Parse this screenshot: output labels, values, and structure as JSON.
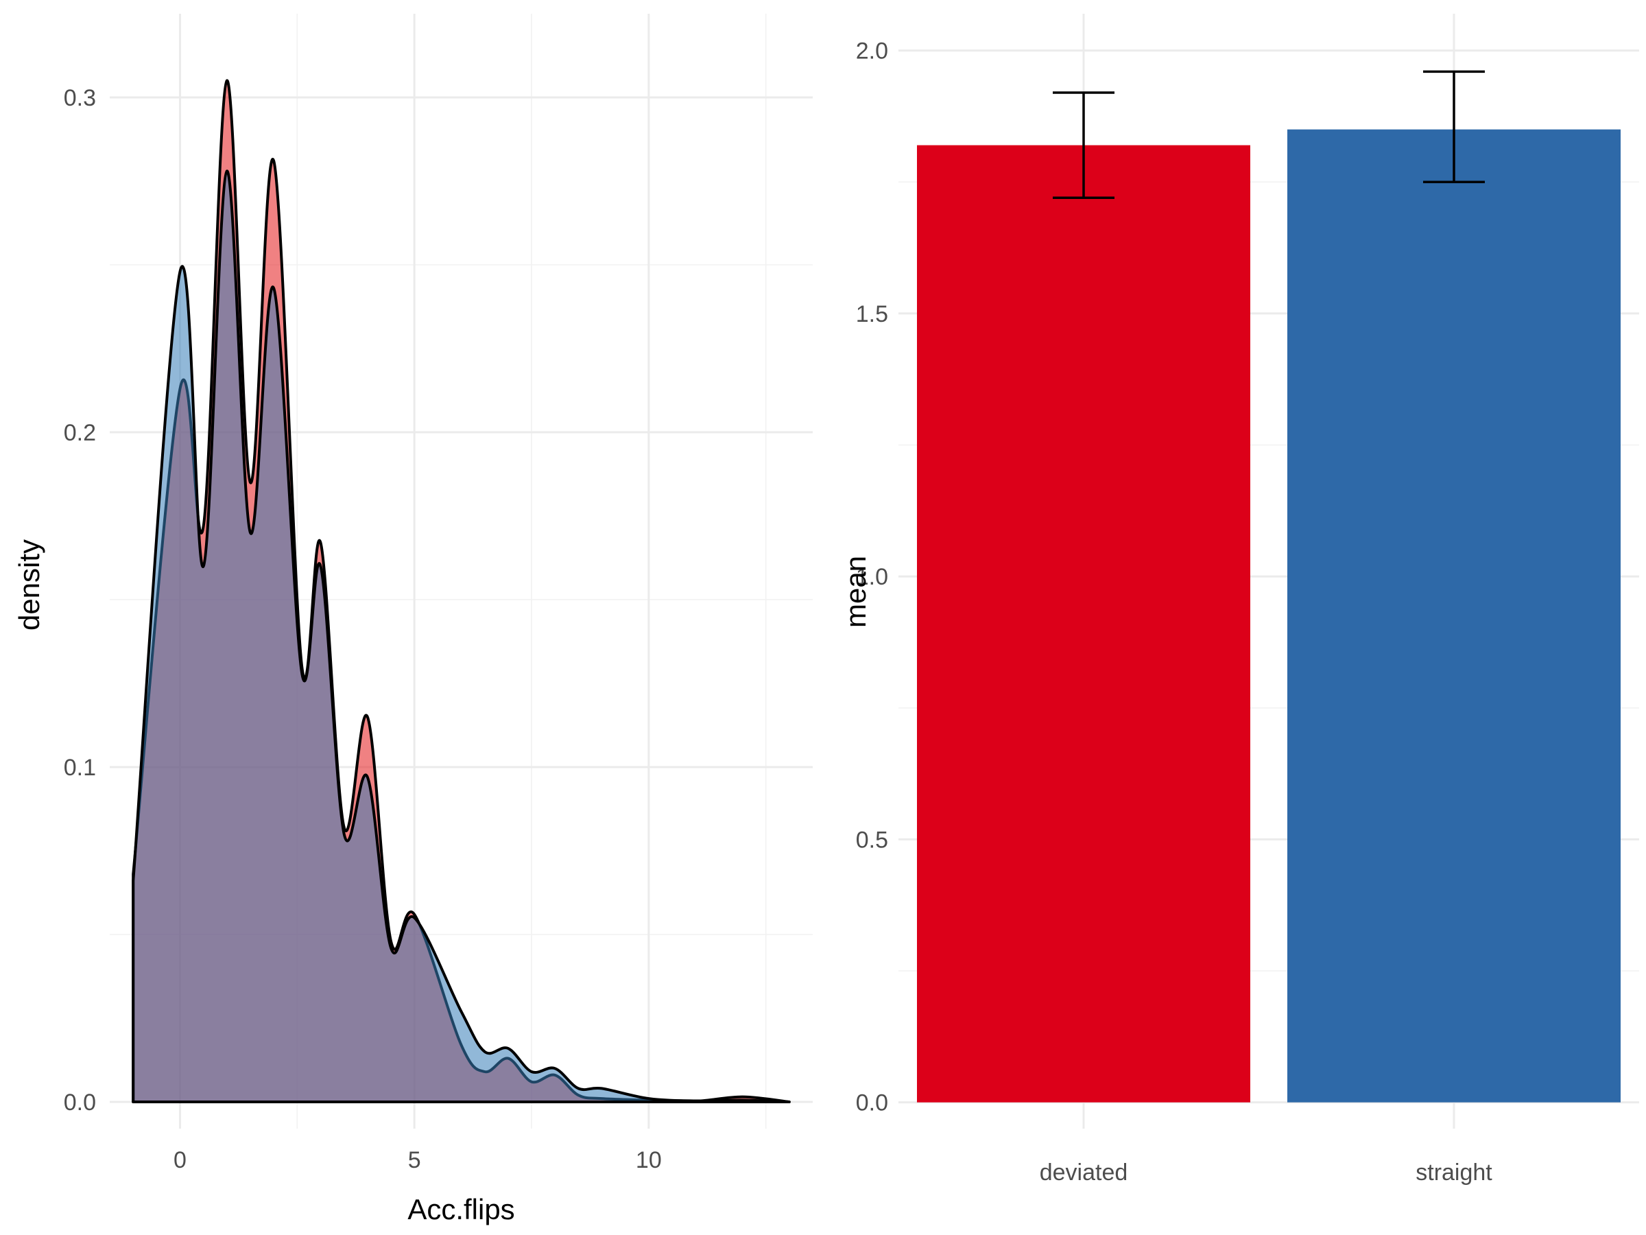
{
  "chart_data": [
    {
      "type": "area",
      "subtype": "density",
      "xlabel": "Acc.flips",
      "ylabel": "density",
      "xlim": [
        -1.5,
        13.5
      ],
      "ylim": [
        -0.008,
        0.325
      ],
      "x_ticks": [
        0,
        5,
        10
      ],
      "y_ticks": [
        0.0,
        0.1,
        0.2,
        0.3
      ],
      "x_tick_labels": [
        "0",
        "5",
        "10"
      ],
      "y_tick_labels": [
        "0.0",
        "0.1",
        "0.2",
        "0.3"
      ],
      "grid": true,
      "legend": "none",
      "series": [
        {
          "group": "deviated",
          "color": "#E41A1C",
          "opacity": 0.55,
          "x": [
            -1,
            0,
            0.5,
            1,
            1.5,
            2,
            2.6,
            3,
            3.5,
            4,
            4.5,
            5,
            6,
            6.5,
            7,
            7.5,
            8,
            8.5,
            9,
            10,
            11,
            12,
            13
          ],
          "y": [
            0.068,
            0.213,
            0.172,
            0.305,
            0.185,
            0.281,
            0.13,
            0.167,
            0.082,
            0.115,
            0.048,
            0.056,
            0.017,
            0.009,
            0.013,
            0.006,
            0.008,
            0.002,
            0.001,
            0.0005,
            0.0002,
            0.0015,
            0.0
          ]
        },
        {
          "group": "straight",
          "color": "#377EB8",
          "opacity": 0.55,
          "x": [
            -1,
            0,
            0.5,
            1,
            1.5,
            2,
            2.6,
            3,
            3.5,
            4,
            4.5,
            5,
            6,
            6.5,
            7,
            7.5,
            8,
            8.5,
            9,
            10,
            11,
            12,
            13
          ],
          "y": [
            0.066,
            0.248,
            0.16,
            0.278,
            0.17,
            0.243,
            0.128,
            0.16,
            0.08,
            0.097,
            0.046,
            0.055,
            0.027,
            0.015,
            0.016,
            0.009,
            0.01,
            0.004,
            0.004,
            0.001,
            0.0003,
            0.0005,
            0.0
          ]
        }
      ]
    },
    {
      "type": "bar",
      "categories": [
        "deviated",
        "straight"
      ],
      "values": [
        1.82,
        1.85
      ],
      "error_low": [
        1.72,
        1.75
      ],
      "error_high": [
        1.92,
        1.96
      ],
      "colors": [
        "#DC0019",
        "#2E69A8"
      ],
      "xlabel": "",
      "ylabel": "mean",
      "ylim": [
        -0.05,
        2.07
      ],
      "y_ticks": [
        0.0,
        0.5,
        1.0,
        1.5,
        2.0
      ],
      "y_tick_labels": [
        "0.0",
        "0.5",
        "1.0",
        "1.5",
        "2.0"
      ],
      "grid": true,
      "legend": "none"
    }
  ]
}
